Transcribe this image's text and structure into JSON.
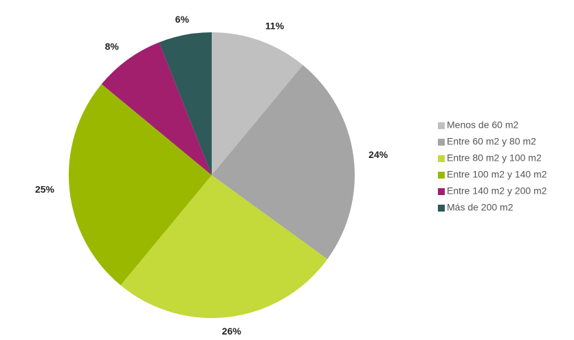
{
  "chart_data": {
    "type": "pie",
    "categories": [
      "Menos de 60 m2",
      "Entre 60 m2 y 80 m2",
      "Entre 80 m2 y 100 m2",
      "Entre 100 m2 y 140 m2",
      "Entre 140 m2 y 200 m2",
      "Más de 200 m2"
    ],
    "values": [
      11,
      24,
      26,
      25,
      8,
      6
    ],
    "value_labels": [
      "11%",
      "24%",
      "26%",
      "25%",
      "8%",
      "6%"
    ],
    "colors": [
      "#c0c0c0",
      "#a5a5a5",
      "#c4d93a",
      "#9bb800",
      "#a21f6e",
      "#2e5a5a"
    ],
    "legend": "right"
  }
}
